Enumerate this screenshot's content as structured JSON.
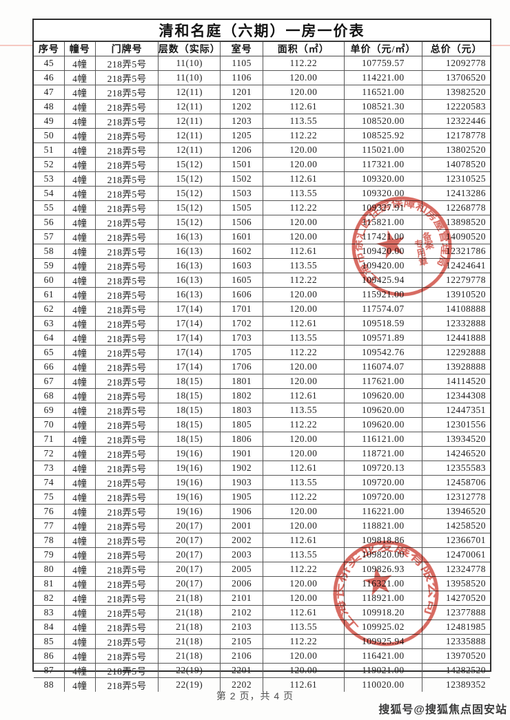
{
  "page": {
    "title": "清和名庭（六期）一房一价表",
    "footer": "第 2 页，共 4 页",
    "watermark": "搜狐号@搜狐焦点固安站"
  },
  "table": {
    "headers": [
      "序号",
      "幢号",
      "门牌号",
      "层数（实际）",
      "室号",
      "面积（㎡）",
      "单价（元/㎡）",
      "总价（元）"
    ],
    "rows": [
      [
        "45",
        "4幢",
        "218弄5号",
        "11(10)",
        "1105",
        "112.22",
        "107759.57",
        "12092778"
      ],
      [
        "46",
        "4幢",
        "218弄5号",
        "11(10)",
        "1106",
        "120.00",
        "114221.00",
        "13706520"
      ],
      [
        "47",
        "4幢",
        "218弄5号",
        "12(11)",
        "1201",
        "120.00",
        "116521.00",
        "13982520"
      ],
      [
        "48",
        "4幢",
        "218弄5号",
        "12(11)",
        "1202",
        "112.61",
        "108521.30",
        "12220583"
      ],
      [
        "49",
        "4幢",
        "218弄5号",
        "12(11)",
        "1203",
        "113.55",
        "108520.00",
        "12322446"
      ],
      [
        "50",
        "4幢",
        "218弄5号",
        "12(11)",
        "1205",
        "112.22",
        "108525.92",
        "12178778"
      ],
      [
        "51",
        "4幢",
        "218弄5号",
        "12(11)",
        "1206",
        "120.00",
        "115021.00",
        "13802520"
      ],
      [
        "52",
        "4幢",
        "218弄5号",
        "15(12)",
        "1501",
        "120.00",
        "117321.00",
        "14078520"
      ],
      [
        "53",
        "4幢",
        "218弄5号",
        "15(12)",
        "1502",
        "112.61",
        "109320.00",
        "12310525"
      ],
      [
        "54",
        "4幢",
        "218弄5号",
        "15(12)",
        "1503",
        "113.55",
        "109320.00",
        "12413286"
      ],
      [
        "55",
        "4幢",
        "218弄5号",
        "15(12)",
        "1505",
        "112.22",
        "109327.91",
        "12268778"
      ],
      [
        "56",
        "4幢",
        "218弄5号",
        "15(12)",
        "1506",
        "120.00",
        "115821.00",
        "13898520"
      ],
      [
        "57",
        "4幢",
        "218弄5号",
        "16(13)",
        "1601",
        "120.00",
        "117421.00",
        "14090520"
      ],
      [
        "58",
        "4幢",
        "218弄5号",
        "16(13)",
        "1602",
        "112.61",
        "109420.00",
        "12321786"
      ],
      [
        "59",
        "4幢",
        "218弄5号",
        "16(13)",
        "1603",
        "113.55",
        "109420.00",
        "12424641"
      ],
      [
        "60",
        "4幢",
        "218弄5号",
        "16(13)",
        "1605",
        "112.22",
        "109425.94",
        "12279778"
      ],
      [
        "61",
        "4幢",
        "218弄5号",
        "16(13)",
        "1606",
        "120.00",
        "115921.00",
        "13910520"
      ],
      [
        "62",
        "4幢",
        "218弄5号",
        "17(14)",
        "1701",
        "120.00",
        "117574.07",
        "14108888"
      ],
      [
        "63",
        "4幢",
        "218弄5号",
        "17(14)",
        "1702",
        "112.61",
        "109518.59",
        "12332888"
      ],
      [
        "64",
        "4幢",
        "218弄5号",
        "17(14)",
        "1703",
        "113.55",
        "109571.89",
        "12441888"
      ],
      [
        "65",
        "4幢",
        "218弄5号",
        "17(14)",
        "1705",
        "112.22",
        "109542.76",
        "12292888"
      ],
      [
        "66",
        "4幢",
        "218弄5号",
        "17(14)",
        "1706",
        "120.00",
        "116074.07",
        "13928888"
      ],
      [
        "67",
        "4幢",
        "218弄5号",
        "18(15)",
        "1801",
        "120.00",
        "117621.00",
        "14114520"
      ],
      [
        "68",
        "4幢",
        "218弄5号",
        "18(15)",
        "1802",
        "112.61",
        "109620.00",
        "12344308"
      ],
      [
        "69",
        "4幢",
        "218弄5号",
        "18(15)",
        "1803",
        "113.55",
        "109620.00",
        "12447351"
      ],
      [
        "70",
        "4幢",
        "218弄5号",
        "18(15)",
        "1805",
        "112.22",
        "109620.00",
        "12301556"
      ],
      [
        "71",
        "4幢",
        "218弄5号",
        "18(15)",
        "1806",
        "120.00",
        "116121.00",
        "13934520"
      ],
      [
        "72",
        "4幢",
        "218弄5号",
        "19(16)",
        "1901",
        "120.00",
        "118721.00",
        "14246520"
      ],
      [
        "73",
        "4幢",
        "218弄5号",
        "19(16)",
        "1902",
        "112.61",
        "109720.13",
        "12355583"
      ],
      [
        "74",
        "4幢",
        "218弄5号",
        "19(16)",
        "1903",
        "113.55",
        "109720.00",
        "12458706"
      ],
      [
        "75",
        "4幢",
        "218弄5号",
        "19(16)",
        "1905",
        "112.22",
        "109720.00",
        "12312778"
      ],
      [
        "76",
        "4幢",
        "218弄5号",
        "19(16)",
        "1906",
        "120.00",
        "116221.00",
        "13946520"
      ],
      [
        "77",
        "4幢",
        "218弄5号",
        "20(17)",
        "2001",
        "120.00",
        "118821.00",
        "14258520"
      ],
      [
        "78",
        "4幢",
        "218弄5号",
        "20(17)",
        "2002",
        "112.61",
        "109818.86",
        "12366701"
      ],
      [
        "79",
        "4幢",
        "218弄5号",
        "20(17)",
        "2003",
        "113.55",
        "109820.00",
        "12470061"
      ],
      [
        "80",
        "4幢",
        "218弄5号",
        "20(17)",
        "2005",
        "112.22",
        "109826.93",
        "12324778"
      ],
      [
        "81",
        "4幢",
        "218弄5号",
        "20(17)",
        "2006",
        "120.00",
        "116321.00",
        "13958520"
      ],
      [
        "82",
        "4幢",
        "218弄5号",
        "21(18)",
        "2101",
        "120.00",
        "118921.00",
        "14270520"
      ],
      [
        "83",
        "4幢",
        "218弄5号",
        "21(18)",
        "2102",
        "112.61",
        "109918.20",
        "12377888"
      ],
      [
        "84",
        "4幢",
        "218弄5号",
        "21(18)",
        "2103",
        "113.55",
        "109925.02",
        "12481985"
      ],
      [
        "85",
        "4幢",
        "218弄5号",
        "21(18)",
        "2105",
        "112.22",
        "109925.94",
        "12335888"
      ],
      [
        "86",
        "4幢",
        "218弄5号",
        "21(18)",
        "2106",
        "120.00",
        "116421.00",
        "13970520"
      ],
      [
        "87",
        "4幢",
        "218弄5号",
        "22(19)",
        "2201",
        "120.00",
        "119021.00",
        "14282520"
      ],
      [
        "88",
        "4幢",
        "218弄5号",
        "22(19)",
        "2202",
        "112.61",
        "110020.00",
        "12389352"
      ]
    ]
  },
  "seals": {
    "color": "#cf4a3f",
    "authority_seal": {
      "ring_text": "上海市徐汇区住房保障和房屋管理局",
      "inner_col_right": "备案",
      "inner_col_left": "专用章"
    },
    "company_seal": {
      "ring_text": "上海长桥实业发展有限公司"
    }
  }
}
